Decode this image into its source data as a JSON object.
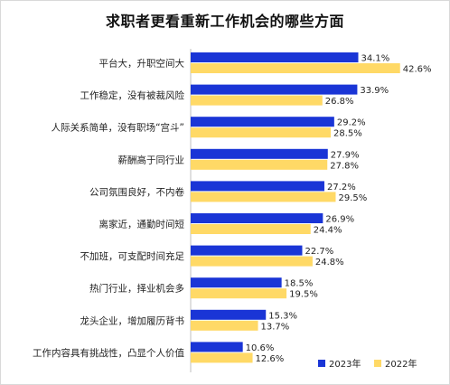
{
  "chart_data": {
    "type": "bar",
    "orientation": "horizontal",
    "title": "求职者更看重新工作机会的哪些方面",
    "categories": [
      "平台大，升职空间大",
      "工作稳定，没有被裁风险",
      "人际关系简单，没有职场“宫斗”",
      "薪酬高于同行业",
      "公司氛围良好，不内卷",
      "离家近，通勤时间短",
      "不加班，可支配时间充足",
      "热门行业，择业机会多",
      "龙头企业，增加履历背书",
      "工作内容具有挑战性，凸显个人价值"
    ],
    "series": [
      {
        "name": "2023年",
        "color": "#1a35d6",
        "values": [
          34.1,
          33.9,
          29.2,
          27.9,
          27.2,
          26.9,
          22.7,
          18.5,
          15.3,
          10.6
        ],
        "labels": [
          "34.1%",
          "33.9%",
          "29.2%",
          "27.9%",
          "27.2%",
          "26.9%",
          "22.7%",
          "18.5%",
          "15.3%",
          "10.6%"
        ]
      },
      {
        "name": "2022年",
        "color": "#ffd966",
        "values": [
          42.6,
          26.8,
          28.5,
          27.8,
          29.5,
          24.4,
          24.8,
          19.5,
          13.7,
          12.6
        ],
        "labels": [
          "42.6%",
          "26.8%",
          "28.5%",
          "27.8%",
          "29.5%",
          "24.4%",
          "24.8%",
          "19.5%",
          "13.7%",
          "12.6%"
        ]
      }
    ],
    "xlim": [
      0,
      45
    ],
    "unit": "%",
    "legend": "bottom-right",
    "grid": false
  }
}
